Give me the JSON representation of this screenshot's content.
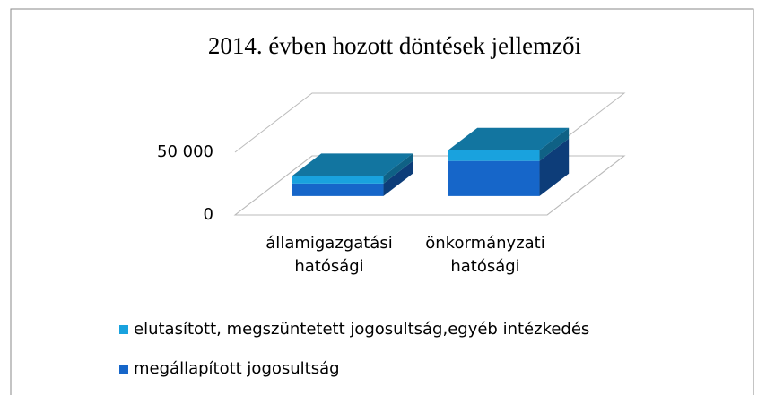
{
  "chart_data": {
    "type": "bar3d_stacked",
    "title": "2014. évben hozott döntések jellemzői",
    "categories": [
      "államigazgatási hatósági",
      "önkormányzati hatósági"
    ],
    "series": [
      {
        "name": "megállapított jogosultság",
        "color": "#1666c9",
        "values": [
          10000,
          28000
        ]
      },
      {
        "name": "elutasított, megszüntetett jogosultság,egyéb intézkedés",
        "color": "#19a2de",
        "values": [
          6000,
          8500
        ]
      }
    ],
    "ylim": [
      0,
      50000
    ],
    "yticks": [
      0,
      {
        "value": 50000,
        "label": "50 000"
      }
    ],
    "grid": true
  }
}
